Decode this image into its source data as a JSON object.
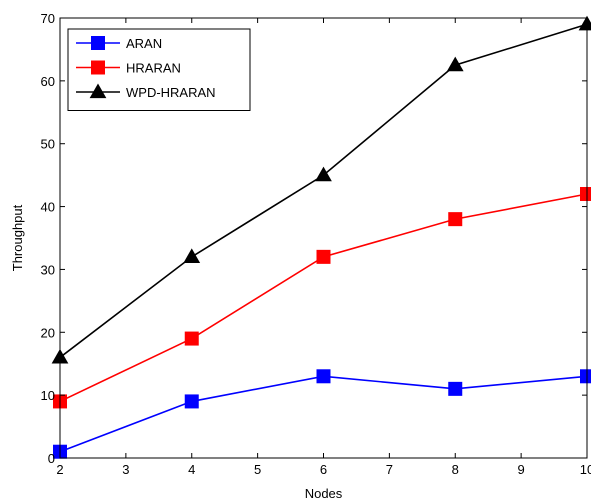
{
  "chart_data": {
    "type": "line",
    "title": "",
    "xlabel": "Nodes",
    "ylabel": "Throughput",
    "xlim": [
      2,
      10
    ],
    "ylim": [
      0,
      70
    ],
    "x_ticks": [
      "2",
      "3",
      "4",
      "5",
      "6",
      "7",
      "8",
      "9",
      "10"
    ],
    "y_ticks": [
      "0",
      "10",
      "20",
      "30",
      "40",
      "50",
      "60",
      "70"
    ],
    "grid": false,
    "legend_position": "top-left",
    "series": [
      {
        "name": "ARAN",
        "color": "#0000ff",
        "marker": "square",
        "x": [
          2,
          4,
          6,
          8,
          10
        ],
        "y": [
          1,
          9,
          13,
          11,
          13
        ]
      },
      {
        "name": "HRARAN",
        "color": "#ff0000",
        "marker": "square",
        "x": [
          2,
          4,
          6,
          8,
          10
        ],
        "y": [
          9,
          19,
          32,
          38,
          42
        ]
      },
      {
        "name": "WPD-HRARAN",
        "color": "#000000",
        "marker": "triangle",
        "x": [
          2,
          4,
          6,
          8,
          10
        ],
        "y": [
          16,
          32,
          45,
          62.5,
          69
        ]
      }
    ]
  }
}
